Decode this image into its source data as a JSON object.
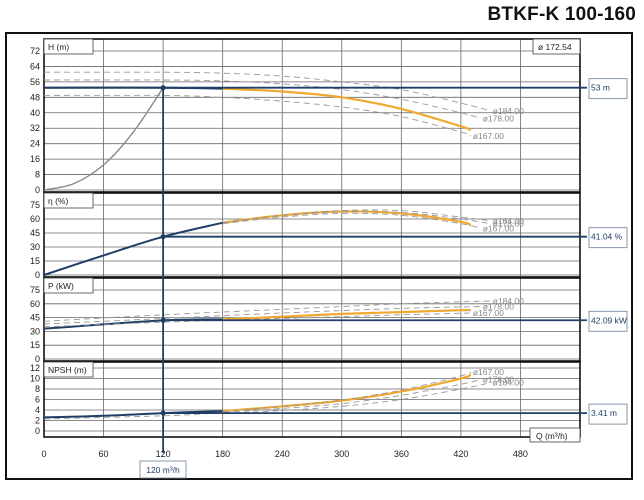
{
  "header": {
    "title": "BTKF-K 100-160"
  },
  "impeller_label": "ø 172.54",
  "operating_point": {
    "flow_label": "120 m³/h",
    "head_label": "53 m",
    "efficiency_label": "41.04 %",
    "power_label": "42.09 kW",
    "npsh_label": "3.41 m"
  },
  "panels": {
    "head": {
      "label": "H (m)"
    },
    "efficiency": {
      "label": "η (%)"
    },
    "power": {
      "label": "P (kW)"
    },
    "npsh": {
      "label": "NPSH (m)"
    },
    "x_axis": {
      "label": "Q (m³/h)"
    }
  },
  "colors": {
    "operating": "#1f3f66",
    "selected_curve": "#f0a830",
    "alt_curve": "#999999",
    "grid": "#555555"
  },
  "chart_data": [
    {
      "type": "line",
      "title": "H (m)",
      "xlabel": "Q (m³/h)",
      "ylabel": "H (m)",
      "xlim": [
        0,
        540
      ],
      "ylim": [
        0,
        72
      ],
      "xticks": [
        0,
        60,
        120,
        180,
        240,
        300,
        360,
        420,
        480
      ],
      "yticks": [
        0,
        8,
        16,
        24,
        32,
        40,
        48,
        56,
        64,
        72
      ],
      "series": [
        {
          "name": "ø172.54 (selected)",
          "x": [
            0,
            120,
            180,
            240,
            300,
            360,
            420,
            430
          ],
          "values": [
            53,
            53,
            52.5,
            51,
            48,
            42,
            33,
            31
          ]
        },
        {
          "name": "ø184.00",
          "x": [
            0,
            120,
            180,
            240,
            300,
            360,
            420,
            450
          ],
          "values": [
            61,
            61,
            60.5,
            59,
            56,
            52,
            45,
            41
          ]
        },
        {
          "name": "ø178.00",
          "x": [
            0,
            120,
            180,
            240,
            300,
            360,
            420,
            440
          ],
          "values": [
            57,
            57,
            56.5,
            55,
            52,
            47,
            40,
            37
          ]
        },
        {
          "name": "ø167.00",
          "x": [
            0,
            120,
            180,
            240,
            300,
            360,
            420,
            430
          ],
          "values": [
            49,
            49,
            48,
            46,
            43,
            38,
            30,
            28
          ]
        },
        {
          "name": "System curve",
          "x": [
            0,
            30,
            60,
            90,
            120
          ],
          "values": [
            0,
            3.3,
            13,
            30,
            53
          ]
        }
      ],
      "operating_point": {
        "x": 120,
        "y": 53
      },
      "annotations": [
        "ø 172.54",
        "ø184.00",
        "ø178.00",
        "ø167.00",
        "53 m"
      ]
    },
    {
      "type": "line",
      "title": "η (%)",
      "xlim": [
        0,
        540
      ],
      "ylim": [
        0,
        75
      ],
      "yticks": [
        0,
        15,
        30,
        45,
        60,
        75
      ],
      "series": [
        {
          "name": "ø172.54 (selected)",
          "x": [
            0,
            60,
            120,
            180,
            240,
            300,
            360,
            420,
            430
          ],
          "values": [
            0,
            21,
            41,
            56,
            64,
            68,
            66,
            57,
            53
          ]
        },
        {
          "name": "ø184.00",
          "x": [
            180,
            240,
            300,
            360,
            420,
            450
          ],
          "values": [
            56,
            64,
            69,
            69,
            62,
            58
          ]
        },
        {
          "name": "ø178.00",
          "x": [
            180,
            240,
            300,
            360,
            420,
            450
          ],
          "values": [
            56,
            64,
            68,
            67,
            60,
            55
          ]
        },
        {
          "name": "ø167.00",
          "x": [
            180,
            240,
            300,
            360,
            420,
            440
          ],
          "values": [
            55,
            62,
            66,
            64,
            55,
            50
          ]
        }
      ],
      "operating_point": {
        "x": 120,
        "y": 41.04
      },
      "annotations": [
        "ø184.00",
        "ø178.00",
        "ø167.00",
        "41.04 %"
      ]
    },
    {
      "type": "line",
      "title": "P (kW)",
      "xlim": [
        0,
        540
      ],
      "ylim": [
        0,
        75
      ],
      "yticks": [
        0,
        15,
        30,
        45,
        60,
        75
      ],
      "series": [
        {
          "name": "ø172.54 (selected)",
          "x": [
            0,
            120,
            180,
            240,
            300,
            360,
            420,
            430
          ],
          "values": [
            33,
            42,
            43,
            46,
            49,
            51,
            53,
            53
          ]
        },
        {
          "name": "ø184.00",
          "x": [
            0,
            120,
            240,
            360,
            450
          ],
          "values": [
            41,
            48,
            54,
            60,
            63
          ]
        },
        {
          "name": "ø178.00",
          "x": [
            0,
            120,
            240,
            360,
            440
          ],
          "values": [
            38,
            44,
            50,
            55,
            57
          ]
        },
        {
          "name": "ø167.00",
          "x": [
            0,
            120,
            240,
            360,
            430
          ],
          "values": [
            35,
            40,
            44,
            48,
            50
          ]
        }
      ],
      "operating_point": {
        "x": 120,
        "y": 42.09
      },
      "annotations": [
        "ø184.00",
        "ø178.00",
        "ø167.00",
        "42.09 kW"
      ]
    },
    {
      "type": "line",
      "title": "NPSH (m)",
      "xlim": [
        0,
        540
      ],
      "ylim": [
        0,
        12
      ],
      "yticks": [
        0,
        2,
        4,
        6,
        8,
        10,
        12
      ],
      "series": [
        {
          "name": "ø172.54 (selected)",
          "x": [
            0,
            60,
            120,
            180,
            240,
            300,
            360,
            420,
            430
          ],
          "values": [
            2.6,
            2.9,
            3.41,
            3.8,
            4.7,
            5.8,
            7.5,
            10.0,
            10.8
          ]
        },
        {
          "name": "ø167.00",
          "x": [
            180,
            240,
            300,
            360,
            420,
            430
          ],
          "values": [
            3.7,
            4.7,
            5.9,
            7.8,
            10.5,
            11.2
          ]
        },
        {
          "name": "ø178.00",
          "x": [
            0,
            120,
            180,
            240,
            300,
            360,
            420,
            440
          ],
          "values": [
            2.3,
            2.9,
            3.5,
            4.3,
            5.2,
            6.8,
            8.9,
            9.8
          ]
        },
        {
          "name": "ø184.00",
          "x": [
            180,
            240,
            300,
            360,
            420,
            450
          ],
          "values": [
            3.3,
            3.9,
            4.7,
            6.0,
            8.0,
            9.2
          ]
        }
      ],
      "operating_point": {
        "x": 120,
        "y": 3.41
      },
      "annotations": [
        "ø167.00",
        "ø178.00",
        "ø184.00",
        "3.41 m"
      ]
    }
  ]
}
